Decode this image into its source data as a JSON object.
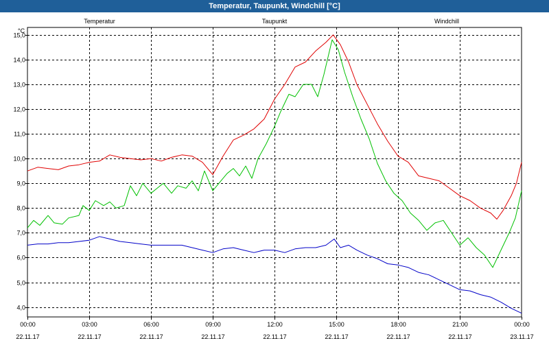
{
  "window": {
    "title": "Temperatur, Taupunkt, Windchill [°C]"
  },
  "chart_data": {
    "type": "line",
    "title": "Temperatur, Taupunkt, Windchill [°C]",
    "ylabel": "°C",
    "ylim": [
      3.6,
      15.3
    ],
    "xlim": [
      0,
      24
    ],
    "grid": true,
    "yticks": [
      4.0,
      5.0,
      6.0,
      7.0,
      8.0,
      9.0,
      10.0,
      11.0,
      12.0,
      13.0,
      14.0,
      15.0
    ],
    "ytick_labels": [
      "4,0",
      "5,0",
      "6,0",
      "7,0",
      "8,0",
      "9,0",
      "10,0",
      "11,0",
      "12,0",
      "13,0",
      "14,0",
      "15,0"
    ],
    "xticks": [
      0,
      3,
      6,
      9,
      12,
      15,
      18,
      21,
      24
    ],
    "xtick_times": [
      "00:00",
      "03:00",
      "06:00",
      "09:00",
      "12:00",
      "15:00",
      "18:00",
      "21:00",
      "00:00"
    ],
    "xtick_dates": [
      "22.11.17",
      "22.11.17",
      "22.11.17",
      "22.11.17",
      "22.11.17",
      "22.11.17",
      "22.11.17",
      "22.11.17",
      "23.11.17"
    ],
    "series": [
      {
        "name": "Temperatur",
        "color": "#e00000",
        "points": [
          [
            0,
            9.5
          ],
          [
            0.5,
            9.65
          ],
          [
            1,
            9.6
          ],
          [
            1.5,
            9.55
          ],
          [
            2,
            9.7
          ],
          [
            2.5,
            9.75
          ],
          [
            3,
            9.85
          ],
          [
            3.5,
            9.9
          ],
          [
            4,
            10.15
          ],
          [
            4.5,
            10.05
          ],
          [
            5,
            10.0
          ],
          [
            5.5,
            9.95
          ],
          [
            6,
            10.0
          ],
          [
            6.5,
            9.9
          ],
          [
            7,
            10.05
          ],
          [
            7.5,
            10.15
          ],
          [
            8,
            10.1
          ],
          [
            8.5,
            9.85
          ],
          [
            9,
            9.35
          ],
          [
            9.5,
            10.1
          ],
          [
            10,
            10.75
          ],
          [
            10.5,
            10.95
          ],
          [
            11,
            11.2
          ],
          [
            11.5,
            11.6
          ],
          [
            12,
            12.4
          ],
          [
            12.5,
            13.0
          ],
          [
            13,
            13.7
          ],
          [
            13.5,
            13.9
          ],
          [
            14,
            14.35
          ],
          [
            14.5,
            14.7
          ],
          [
            14.85,
            15.0
          ],
          [
            15.2,
            14.6
          ],
          [
            15.6,
            13.9
          ],
          [
            16,
            13.0
          ],
          [
            16.5,
            12.2
          ],
          [
            17,
            11.4
          ],
          [
            17.5,
            10.7
          ],
          [
            18,
            10.1
          ],
          [
            18.5,
            9.85
          ],
          [
            19,
            9.3
          ],
          [
            19.5,
            9.2
          ],
          [
            20,
            9.1
          ],
          [
            20.5,
            8.8
          ],
          [
            21,
            8.5
          ],
          [
            21.5,
            8.3
          ],
          [
            22,
            8.0
          ],
          [
            22.5,
            7.8
          ],
          [
            22.8,
            7.55
          ],
          [
            23.1,
            7.9
          ],
          [
            23.5,
            8.5
          ],
          [
            23.75,
            9.0
          ],
          [
            24,
            9.85
          ]
        ]
      },
      {
        "name": "Taupunkt",
        "color": "#0000c8",
        "points": [
          [
            0,
            6.5
          ],
          [
            0.5,
            6.55
          ],
          [
            1,
            6.55
          ],
          [
            1.5,
            6.6
          ],
          [
            2,
            6.6
          ],
          [
            2.5,
            6.65
          ],
          [
            3,
            6.7
          ],
          [
            3.5,
            6.85
          ],
          [
            4,
            6.75
          ],
          [
            4.5,
            6.65
          ],
          [
            5,
            6.6
          ],
          [
            5.5,
            6.55
          ],
          [
            6,
            6.5
          ],
          [
            6.5,
            6.5
          ],
          [
            7,
            6.5
          ],
          [
            7.5,
            6.5
          ],
          [
            8,
            6.4
          ],
          [
            8.5,
            6.3
          ],
          [
            9,
            6.2
          ],
          [
            9.5,
            6.35
          ],
          [
            10,
            6.4
          ],
          [
            10.5,
            6.3
          ],
          [
            11,
            6.2
          ],
          [
            11.5,
            6.3
          ],
          [
            12,
            6.3
          ],
          [
            12.5,
            6.2
          ],
          [
            13,
            6.35
          ],
          [
            13.5,
            6.4
          ],
          [
            14,
            6.4
          ],
          [
            14.5,
            6.5
          ],
          [
            14.9,
            6.75
          ],
          [
            15.2,
            6.4
          ],
          [
            15.6,
            6.5
          ],
          [
            16,
            6.3
          ],
          [
            16.5,
            6.1
          ],
          [
            17,
            5.95
          ],
          [
            17.5,
            5.75
          ],
          [
            18,
            5.7
          ],
          [
            18.5,
            5.6
          ],
          [
            19,
            5.4
          ],
          [
            19.5,
            5.3
          ],
          [
            20,
            5.1
          ],
          [
            20.5,
            4.9
          ],
          [
            21,
            4.7
          ],
          [
            21.5,
            4.65
          ],
          [
            22,
            4.5
          ],
          [
            22.5,
            4.4
          ],
          [
            23,
            4.2
          ],
          [
            23.5,
            3.95
          ],
          [
            24,
            3.75
          ]
        ]
      },
      {
        "name": "Windchill",
        "color": "#00c000",
        "points": [
          [
            0,
            7.2
          ],
          [
            0.3,
            7.5
          ],
          [
            0.6,
            7.3
          ],
          [
            1,
            7.7
          ],
          [
            1.3,
            7.4
          ],
          [
            1.7,
            7.35
          ],
          [
            2,
            7.6
          ],
          [
            2.5,
            7.7
          ],
          [
            2.7,
            8.1
          ],
          [
            3,
            7.9
          ],
          [
            3.3,
            8.3
          ],
          [
            3.7,
            8.1
          ],
          [
            4,
            8.25
          ],
          [
            4.3,
            8.0
          ],
          [
            4.7,
            8.1
          ],
          [
            5,
            8.9
          ],
          [
            5.3,
            8.5
          ],
          [
            5.6,
            9.0
          ],
          [
            6,
            8.6
          ],
          [
            6.3,
            8.8
          ],
          [
            6.6,
            9.0
          ],
          [
            7,
            8.6
          ],
          [
            7.3,
            8.9
          ],
          [
            7.7,
            8.8
          ],
          [
            8,
            9.1
          ],
          [
            8.3,
            8.7
          ],
          [
            8.6,
            9.5
          ],
          [
            9,
            8.7
          ],
          [
            9.3,
            9.0
          ],
          [
            9.7,
            9.4
          ],
          [
            10,
            9.6
          ],
          [
            10.3,
            9.3
          ],
          [
            10.6,
            9.7
          ],
          [
            10.9,
            9.2
          ],
          [
            11.2,
            10.0
          ],
          [
            11.6,
            10.6
          ],
          [
            12,
            11.3
          ],
          [
            12.3,
            11.9
          ],
          [
            12.7,
            12.6
          ],
          [
            13,
            12.5
          ],
          [
            13.4,
            13.0
          ],
          [
            13.8,
            13.0
          ],
          [
            14.1,
            12.5
          ],
          [
            14.4,
            13.4
          ],
          [
            14.8,
            14.8
          ],
          [
            15.1,
            14.4
          ],
          [
            15.4,
            13.5
          ],
          [
            15.8,
            12.5
          ],
          [
            16.2,
            11.6
          ],
          [
            16.6,
            10.8
          ],
          [
            17,
            9.8
          ],
          [
            17.4,
            9.1
          ],
          [
            17.8,
            8.6
          ],
          [
            18.2,
            8.3
          ],
          [
            18.6,
            7.8
          ],
          [
            19,
            7.5
          ],
          [
            19.4,
            7.1
          ],
          [
            19.8,
            7.4
          ],
          [
            20.2,
            7.5
          ],
          [
            20.6,
            7.0
          ],
          [
            21,
            6.5
          ],
          [
            21.4,
            6.8
          ],
          [
            21.8,
            6.4
          ],
          [
            22.2,
            6.1
          ],
          [
            22.6,
            5.6
          ],
          [
            23,
            6.3
          ],
          [
            23.4,
            7.0
          ],
          [
            23.7,
            7.6
          ],
          [
            24,
            8.7
          ]
        ]
      }
    ]
  }
}
